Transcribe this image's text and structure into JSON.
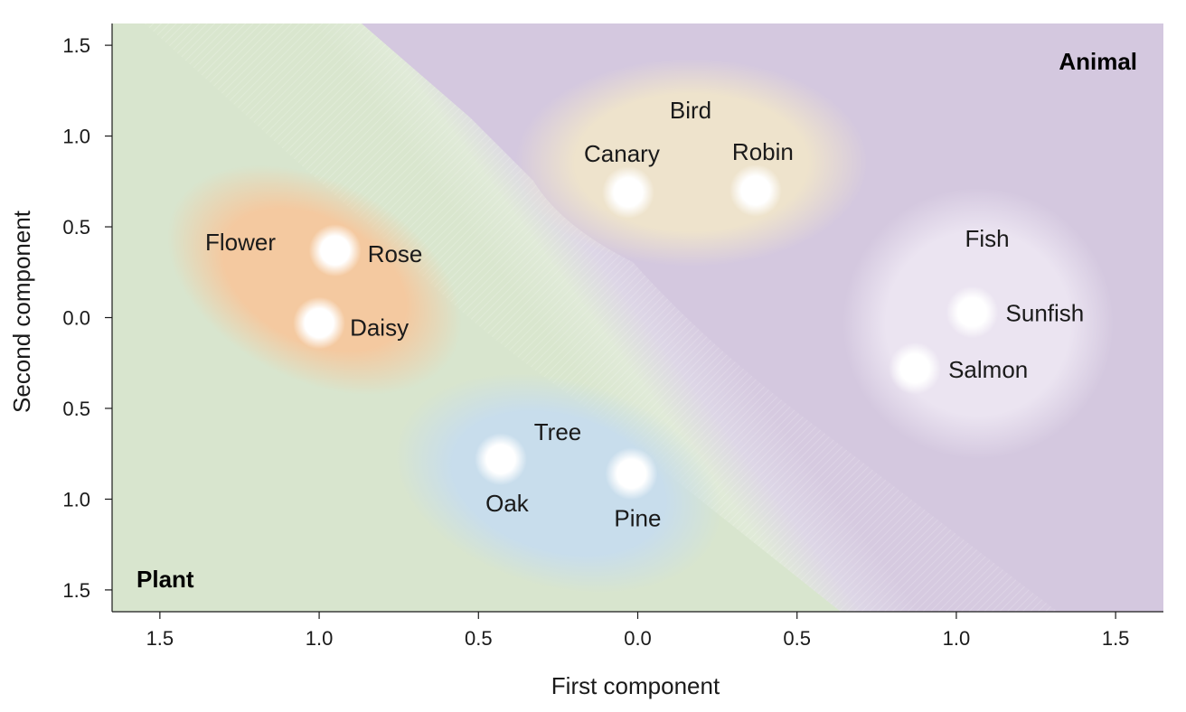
{
  "chart_data": {
    "type": "scatter",
    "title": "",
    "xlabel": "First component",
    "ylabel": "Second component",
    "xlim": [
      -1.65,
      1.65
    ],
    "ylim": [
      -1.62,
      1.62
    ],
    "x_ticks": [
      {
        "value": -1.5,
        "label": "1.5"
      },
      {
        "value": -1.0,
        "label": "1.0"
      },
      {
        "value": -0.5,
        "label": "0.5"
      },
      {
        "value": 0.0,
        "label": "0.0"
      },
      {
        "value": 0.5,
        "label": "0.5"
      },
      {
        "value": 1.0,
        "label": "1.0"
      },
      {
        "value": 1.5,
        "label": "1.5"
      }
    ],
    "y_ticks": [
      {
        "value": 1.5,
        "label": "1.5"
      },
      {
        "value": 1.0,
        "label": "1.0"
      },
      {
        "value": 0.5,
        "label": "0.5"
      },
      {
        "value": 0.0,
        "label": "0.0"
      },
      {
        "value": -0.5,
        "label": "0.5"
      },
      {
        "value": -1.0,
        "label": "1.0"
      },
      {
        "value": -1.5,
        "label": "1.5"
      }
    ],
    "points": [
      {
        "name": "Rose",
        "x": -0.95,
        "y": 0.37,
        "group": "Flower"
      },
      {
        "name": "Daisy",
        "x": -1.0,
        "y": -0.03,
        "group": "Flower"
      },
      {
        "name": "Oak",
        "x": -0.43,
        "y": -0.78,
        "group": "Tree"
      },
      {
        "name": "Pine",
        "x": -0.02,
        "y": -0.86,
        "group": "Tree"
      },
      {
        "name": "Canary",
        "x": -0.03,
        "y": 0.69,
        "group": "Bird"
      },
      {
        "name": "Robin",
        "x": 0.37,
        "y": 0.7,
        "group": "Bird"
      },
      {
        "name": "Sunfish",
        "x": 1.05,
        "y": 0.03,
        "group": "Fish"
      },
      {
        "name": "Salmon",
        "x": 0.87,
        "y": -0.28,
        "group": "Fish"
      }
    ],
    "groups": [
      {
        "name": "Flower",
        "color": "#f3c9a4"
      },
      {
        "name": "Tree",
        "color": "#c7ddeb"
      },
      {
        "name": "Bird",
        "color": "#ede3cd"
      },
      {
        "name": "Fish",
        "color": "#e9e1ef"
      }
    ],
    "regions": [
      {
        "name": "Plant",
        "color": "#d8e5ce"
      },
      {
        "name": "Animal",
        "color": "#d4c8df"
      }
    ],
    "grid": false,
    "legend": "none"
  }
}
